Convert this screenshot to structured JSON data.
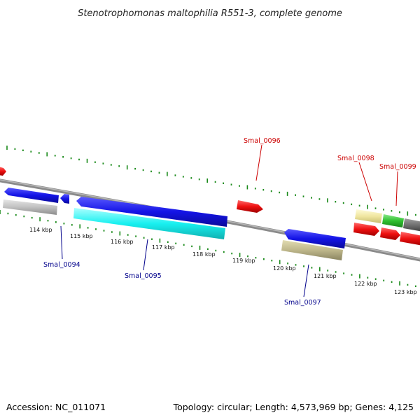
{
  "header": {
    "title": "Stenotrophomonas maltophilia R551-3, complete genome"
  },
  "footer": {
    "accession": "Accession: NC_011071",
    "summary": "Topology: circular; Length: 4,573,969 bp; Genes: 4,125"
  },
  "colors": {
    "backbone": "#8a8a8a",
    "tick": "#1a8a1a",
    "forward_label": "#cc0000",
    "reverse_label": "#00008b"
  },
  "ticks": [
    {
      "label": "114 kbp"
    },
    {
      "label": "115 kbp"
    },
    {
      "label": "116 kbp"
    },
    {
      "label": "117 kbp"
    },
    {
      "label": "118 kbp"
    },
    {
      "label": "119 kbp"
    },
    {
      "label": "120 kbp"
    },
    {
      "label": "121 kbp"
    },
    {
      "label": "122 kbp"
    },
    {
      "label": "123 kbp"
    }
  ],
  "gene_labels": {
    "smal_0094": "Smal_0094",
    "smal_0095": "Smal_0095",
    "smal_0096": "Smal_0096",
    "smal_0097": "Smal_0097",
    "smal_0098": "Smal_0098",
    "smal_0099": "Smal_0099"
  },
  "feature_colors": {
    "blue": "#1414e6",
    "cyan": "#18f0f0",
    "grey": "#c0c0c0",
    "red": "#ee1010",
    "khaki": "#bdb68a",
    "pale_yellow": "#f0e6a0",
    "green": "#30c030",
    "dark_grey": "#707070"
  }
}
